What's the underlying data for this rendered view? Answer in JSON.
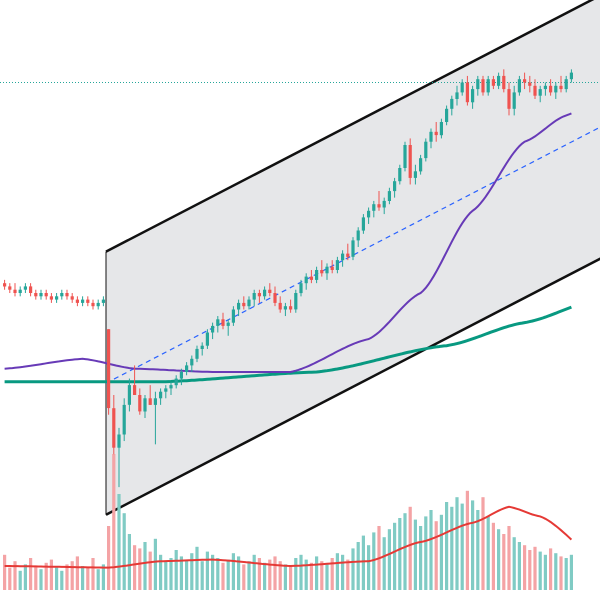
{
  "chart_data": {
    "type": "candlestick",
    "title": "",
    "xlabel": "",
    "ylabel": "",
    "colors": {
      "up": "#26a69a",
      "down": "#ef5350",
      "up_volume": "#80cbc4",
      "down_volume": "#f4a3a5",
      "channel_fill": "#e6e7e9",
      "channel_line": "#111111",
      "channel_mid": "#2962ff",
      "ma_fast": "#673ab7",
      "ma_slow": "#089981",
      "volume_ma": "#e53935",
      "reference_line": "#26a69a"
    },
    "price_range": [
      78,
      230
    ],
    "volume_range": [
      0,
      100
    ],
    "bars": [
      {
        "o": 150,
        "h": 151,
        "l": 148,
        "c": 149,
        "v": 22
      },
      {
        "o": 149,
        "h": 150,
        "l": 147,
        "c": 148,
        "v": 14
      },
      {
        "o": 148,
        "h": 150,
        "l": 146,
        "c": 147,
        "v": 18
      },
      {
        "o": 147,
        "h": 149,
        "l": 146,
        "c": 148,
        "v": 12
      },
      {
        "o": 148,
        "h": 150,
        "l": 147,
        "c": 149,
        "v": 16
      },
      {
        "o": 149,
        "h": 150,
        "l": 146,
        "c": 147,
        "v": 20
      },
      {
        "o": 147,
        "h": 148,
        "l": 145,
        "c": 146,
        "v": 15
      },
      {
        "o": 146,
        "h": 148,
        "l": 145,
        "c": 147,
        "v": 13
      },
      {
        "o": 147,
        "h": 148,
        "l": 145,
        "c": 146,
        "v": 17
      },
      {
        "o": 146,
        "h": 147,
        "l": 144,
        "c": 145,
        "v": 19
      },
      {
        "o": 145,
        "h": 147,
        "l": 144,
        "c": 146,
        "v": 14
      },
      {
        "o": 146,
        "h": 148,
        "l": 145,
        "c": 147,
        "v": 12
      },
      {
        "o": 147,
        "h": 148,
        "l": 145,
        "c": 146,
        "v": 16
      },
      {
        "o": 146,
        "h": 147,
        "l": 144,
        "c": 145,
        "v": 18
      },
      {
        "o": 145,
        "h": 146,
        "l": 143,
        "c": 144,
        "v": 21
      },
      {
        "o": 144,
        "h": 146,
        "l": 143,
        "c": 145,
        "v": 15
      },
      {
        "o": 145,
        "h": 146,
        "l": 143,
        "c": 144,
        "v": 14
      },
      {
        "o": 144,
        "h": 145,
        "l": 142,
        "c": 143,
        "v": 20
      },
      {
        "o": 143,
        "h": 145,
        "l": 142,
        "c": 144,
        "v": 13
      },
      {
        "o": 144,
        "h": 146,
        "l": 143,
        "c": 145,
        "v": 16
      },
      {
        "o": 136,
        "h": 136,
        "l": 110,
        "c": 112,
        "v": 40
      },
      {
        "o": 112,
        "h": 116,
        "l": 98,
        "c": 100,
        "v": 85
      },
      {
        "o": 100,
        "h": 106,
        "l": 88,
        "c": 104,
        "v": 60
      },
      {
        "o": 104,
        "h": 115,
        "l": 102,
        "c": 113,
        "v": 48
      },
      {
        "o": 113,
        "h": 121,
        "l": 111,
        "c": 119,
        "v": 35
      },
      {
        "o": 119,
        "h": 125,
        "l": 117,
        "c": 116,
        "v": 28
      },
      {
        "o": 116,
        "h": 118,
        "l": 110,
        "c": 111,
        "v": 26
      },
      {
        "o": 111,
        "h": 116,
        "l": 109,
        "c": 115,
        "v": 30
      },
      {
        "o": 115,
        "h": 119,
        "l": 113,
        "c": 113,
        "v": 24
      },
      {
        "o": 113,
        "h": 117,
        "l": 101,
        "c": 115,
        "v": 32
      },
      {
        "o": 115,
        "h": 118,
        "l": 113,
        "c": 117,
        "v": 22
      },
      {
        "o": 117,
        "h": 119,
        "l": 115,
        "c": 118,
        "v": 18
      },
      {
        "o": 118,
        "h": 120,
        "l": 116,
        "c": 119,
        "v": 20
      },
      {
        "o": 119,
        "h": 122,
        "l": 118,
        "c": 121,
        "v": 25
      },
      {
        "o": 121,
        "h": 124,
        "l": 119,
        "c": 123,
        "v": 21
      },
      {
        "o": 123,
        "h": 126,
        "l": 122,
        "c": 125,
        "v": 19
      },
      {
        "o": 125,
        "h": 128,
        "l": 123,
        "c": 127,
        "v": 23
      },
      {
        "o": 127,
        "h": 131,
        "l": 126,
        "c": 130,
        "v": 27
      },
      {
        "o": 130,
        "h": 132,
        "l": 128,
        "c": 131,
        "v": 18
      },
      {
        "o": 131,
        "h": 136,
        "l": 130,
        "c": 135,
        "v": 24
      },
      {
        "o": 135,
        "h": 138,
        "l": 133,
        "c": 137,
        "v": 22
      },
      {
        "o": 137,
        "h": 140,
        "l": 135,
        "c": 139,
        "v": 20
      },
      {
        "o": 139,
        "h": 141,
        "l": 136,
        "c": 137,
        "v": 17
      },
      {
        "o": 137,
        "h": 139,
        "l": 134,
        "c": 138,
        "v": 19
      },
      {
        "o": 138,
        "h": 143,
        "l": 137,
        "c": 142,
        "v": 23
      },
      {
        "o": 142,
        "h": 145,
        "l": 140,
        "c": 144,
        "v": 21
      },
      {
        "o": 144,
        "h": 146,
        "l": 142,
        "c": 143,
        "v": 16
      },
      {
        "o": 143,
        "h": 146,
        "l": 142,
        "c": 145,
        "v": 18
      },
      {
        "o": 145,
        "h": 148,
        "l": 143,
        "c": 147,
        "v": 22
      },
      {
        "o": 147,
        "h": 148,
        "l": 144,
        "c": 146,
        "v": 20
      },
      {
        "o": 146,
        "h": 149,
        "l": 145,
        "c": 148,
        "v": 17
      },
      {
        "o": 148,
        "h": 150,
        "l": 146,
        "c": 147,
        "v": 19
      },
      {
        "o": 147,
        "h": 149,
        "l": 143,
        "c": 144,
        "v": 21
      },
      {
        "o": 144,
        "h": 146,
        "l": 141,
        "c": 142,
        "v": 18
      },
      {
        "o": 142,
        "h": 144,
        "l": 140,
        "c": 143,
        "v": 16
      },
      {
        "o": 143,
        "h": 145,
        "l": 141,
        "c": 142,
        "v": 15
      },
      {
        "o": 142,
        "h": 148,
        "l": 141,
        "c": 147,
        "v": 20
      },
      {
        "o": 147,
        "h": 151,
        "l": 146,
        "c": 150,
        "v": 22
      },
      {
        "o": 150,
        "h": 153,
        "l": 148,
        "c": 152,
        "v": 19
      },
      {
        "o": 152,
        "h": 154,
        "l": 150,
        "c": 151,
        "v": 17
      },
      {
        "o": 151,
        "h": 155,
        "l": 150,
        "c": 154,
        "v": 21
      },
      {
        "o": 154,
        "h": 157,
        "l": 152,
        "c": 153,
        "v": 18
      },
      {
        "o": 153,
        "h": 156,
        "l": 151,
        "c": 155,
        "v": 16
      },
      {
        "o": 155,
        "h": 157,
        "l": 153,
        "c": 154,
        "v": 20
      },
      {
        "o": 154,
        "h": 158,
        "l": 153,
        "c": 157,
        "v": 23
      },
      {
        "o": 157,
        "h": 160,
        "l": 155,
        "c": 159,
        "v": 22
      },
      {
        "o": 159,
        "h": 162,
        "l": 157,
        "c": 158,
        "v": 19
      },
      {
        "o": 158,
        "h": 164,
        "l": 157,
        "c": 163,
        "v": 26
      },
      {
        "o": 163,
        "h": 167,
        "l": 161,
        "c": 166,
        "v": 30
      },
      {
        "o": 166,
        "h": 171,
        "l": 165,
        "c": 170,
        "v": 34
      },
      {
        "o": 170,
        "h": 173,
        "l": 168,
        "c": 172,
        "v": 28
      },
      {
        "o": 172,
        "h": 175,
        "l": 170,
        "c": 174,
        "v": 36
      },
      {
        "o": 174,
        "h": 178,
        "l": 172,
        "c": 173,
        "v": 40
      },
      {
        "o": 173,
        "h": 176,
        "l": 171,
        "c": 175,
        "v": 33
      },
      {
        "o": 175,
        "h": 179,
        "l": 174,
        "c": 178,
        "v": 38
      },
      {
        "o": 178,
        "h": 182,
        "l": 176,
        "c": 181,
        "v": 42
      },
      {
        "o": 181,
        "h": 186,
        "l": 180,
        "c": 185,
        "v": 45
      },
      {
        "o": 185,
        "h": 193,
        "l": 184,
        "c": 192,
        "v": 48
      },
      {
        "o": 192,
        "h": 194,
        "l": 180,
        "c": 182,
        "v": 52
      },
      {
        "o": 182,
        "h": 186,
        "l": 180,
        "c": 184,
        "v": 44
      },
      {
        "o": 184,
        "h": 189,
        "l": 183,
        "c": 188,
        "v": 40
      },
      {
        "o": 188,
        "h": 194,
        "l": 187,
        "c": 193,
        "v": 46
      },
      {
        "o": 193,
        "h": 197,
        "l": 191,
        "c": 196,
        "v": 50
      },
      {
        "o": 196,
        "h": 199,
        "l": 193,
        "c": 195,
        "v": 43
      },
      {
        "o": 195,
        "h": 200,
        "l": 194,
        "c": 199,
        "v": 47
      },
      {
        "o": 199,
        "h": 204,
        "l": 198,
        "c": 203,
        "v": 55
      },
      {
        "o": 203,
        "h": 207,
        "l": 201,
        "c": 206,
        "v": 52
      },
      {
        "o": 206,
        "h": 210,
        "l": 204,
        "c": 208,
        "v": 58
      },
      {
        "o": 208,
        "h": 212,
        "l": 207,
        "c": 211,
        "v": 54
      },
      {
        "o": 211,
        "h": 213,
        "l": 204,
        "c": 205,
        "v": 62
      },
      {
        "o": 205,
        "h": 210,
        "l": 203,
        "c": 209,
        "v": 56
      },
      {
        "o": 209,
        "h": 213,
        "l": 207,
        "c": 212,
        "v": 50
      },
      {
        "o": 212,
        "h": 213,
        "l": 207,
        "c": 208,
        "v": 58
      },
      {
        "o": 208,
        "h": 213,
        "l": 207,
        "c": 212,
        "v": 46
      },
      {
        "o": 212,
        "h": 213,
        "l": 209,
        "c": 210,
        "v": 42
      },
      {
        "o": 210,
        "h": 214,
        "l": 209,
        "c": 213,
        "v": 38
      },
      {
        "o": 213,
        "h": 215,
        "l": 208,
        "c": 209,
        "v": 35
      },
      {
        "o": 209,
        "h": 211,
        "l": 201,
        "c": 203,
        "v": 40
      },
      {
        "o": 203,
        "h": 210,
        "l": 201,
        "c": 208,
        "v": 33
      },
      {
        "o": 208,
        "h": 213,
        "l": 207,
        "c": 212,
        "v": 30
      },
      {
        "o": 212,
        "h": 214,
        "l": 209,
        "c": 211,
        "v": 28
      },
      {
        "o": 211,
        "h": 213,
        "l": 208,
        "c": 210,
        "v": 25
      },
      {
        "o": 210,
        "h": 212,
        "l": 206,
        "c": 207,
        "v": 27
      },
      {
        "o": 207,
        "h": 210,
        "l": 205,
        "c": 209,
        "v": 24
      },
      {
        "o": 209,
        "h": 211,
        "l": 207,
        "c": 210,
        "v": 22
      },
      {
        "o": 210,
        "h": 212,
        "l": 207,
        "c": 208,
        "v": 26
      },
      {
        "o": 208,
        "h": 211,
        "l": 206,
        "c": 210,
        "v": 23
      },
      {
        "o": 210,
        "h": 213,
        "l": 208,
        "c": 209,
        "v": 21
      },
      {
        "o": 209,
        "h": 213,
        "l": 208,
        "c": 212,
        "v": 20
      },
      {
        "o": 212,
        "h": 215,
        "l": 211,
        "c": 214,
        "v": 22
      }
    ],
    "channel": {
      "start_bar": 20,
      "end_bar": 114,
      "upper": [
        160,
        237
      ],
      "middle": [
        120,
        197
      ],
      "lower": [
        80,
        157
      ]
    },
    "reference_level": 211,
    "ma_fast_anchors": [
      {
        "bar": 0,
        "value": 124
      },
      {
        "bar": 15,
        "value": 127
      },
      {
        "bar": 25,
        "value": 124
      },
      {
        "bar": 40,
        "value": 123
      },
      {
        "bar": 55,
        "value": 123
      },
      {
        "bar": 70,
        "value": 133
      },
      {
        "bar": 80,
        "value": 147
      },
      {
        "bar": 90,
        "value": 172
      },
      {
        "bar": 100,
        "value": 193
      },
      {
        "bar": 108,
        "value": 201
      },
      {
        "bar": 114,
        "value": 206
      }
    ],
    "ma_slow_anchors": [
      {
        "bar": 0,
        "value": 120
      },
      {
        "bar": 30,
        "value": 120
      },
      {
        "bar": 60,
        "value": 123
      },
      {
        "bar": 85,
        "value": 131
      },
      {
        "bar": 100,
        "value": 138
      },
      {
        "bar": 114,
        "value": 145
      }
    ],
    "volume_ma_anchors": [
      {
        "bar": 0,
        "value": 15
      },
      {
        "bar": 20,
        "value": 14
      },
      {
        "bar": 30,
        "value": 18
      },
      {
        "bar": 40,
        "value": 19
      },
      {
        "bar": 55,
        "value": 15
      },
      {
        "bar": 70,
        "value": 18
      },
      {
        "bar": 80,
        "value": 30
      },
      {
        "bar": 90,
        "value": 42
      },
      {
        "bar": 97,
        "value": 52
      },
      {
        "bar": 103,
        "value": 46
      },
      {
        "bar": 114,
        "value": 20
      }
    ]
  }
}
